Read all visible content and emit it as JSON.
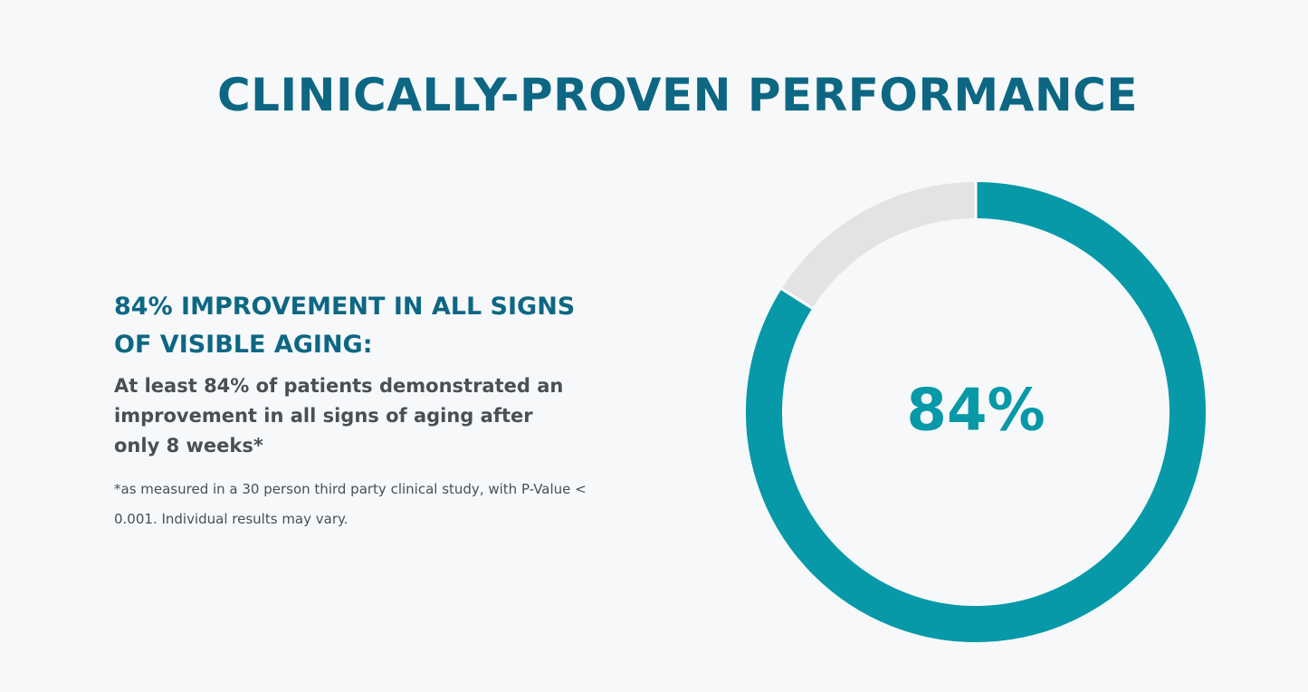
{
  "title": "CLINICALLY-PROVEN PERFORMANCE",
  "heading": "84% IMPROVEMENT IN ALL SIGNS OF VISIBLE AGING:",
  "body": "At least 84% of patients demonstrated an improvement in all signs of aging after only 8 weeks*",
  "footnote": "*as measured in a 30 person third party clinical study, with P-Value < 0.001. Individual results may vary.",
  "chart_data": {
    "type": "gauge",
    "values": [
      84
    ],
    "value_labels": [
      "84%"
    ],
    "ylim": [
      0,
      100
    ],
    "color": "#0799a8",
    "track_color": "#e1e3e5"
  }
}
